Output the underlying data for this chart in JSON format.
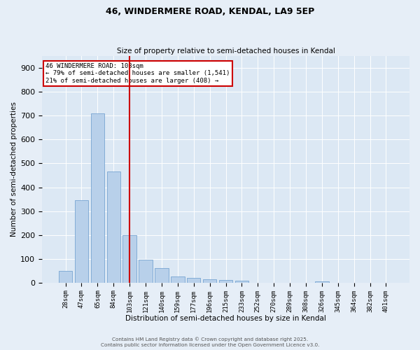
{
  "title1": "46, WINDERMERE ROAD, KENDAL, LA9 5EP",
  "title2": "Size of property relative to semi-detached houses in Kendal",
  "xlabel": "Distribution of semi-detached houses by size in Kendal",
  "ylabel": "Number of semi-detached properties",
  "categories": [
    "28sqm",
    "47sqm",
    "65sqm",
    "84sqm",
    "103sqm",
    "121sqm",
    "140sqm",
    "159sqm",
    "177sqm",
    "196sqm",
    "215sqm",
    "233sqm",
    "252sqm",
    "270sqm",
    "289sqm",
    "308sqm",
    "326sqm",
    "345sqm",
    "364sqm",
    "382sqm",
    "401sqm"
  ],
  "values": [
    50,
    345,
    710,
    465,
    200,
    95,
    60,
    25,
    20,
    15,
    10,
    8,
    0,
    0,
    0,
    0,
    5,
    0,
    0,
    0,
    0
  ],
  "bar_color": "#b8d0ea",
  "bar_edge_color": "#6699cc",
  "vline_index": 4,
  "vline_color": "#cc0000",
  "annotation_title": "46 WINDERMERE ROAD: 103sqm",
  "annotation_line1": "← 79% of semi-detached houses are smaller (1,541)",
  "annotation_line2": "21% of semi-detached houses are larger (408) →",
  "annotation_box_edge": "#cc0000",
  "ylim": [
    0,
    950
  ],
  "yticks": [
    0,
    100,
    200,
    300,
    400,
    500,
    600,
    700,
    800,
    900
  ],
  "footer1": "Contains HM Land Registry data © Crown copyright and database right 2025.",
  "footer2": "Contains public sector information licensed under the Open Government Licence v3.0.",
  "bg_color": "#e6eef7",
  "plot_bg_color": "#dce8f4"
}
